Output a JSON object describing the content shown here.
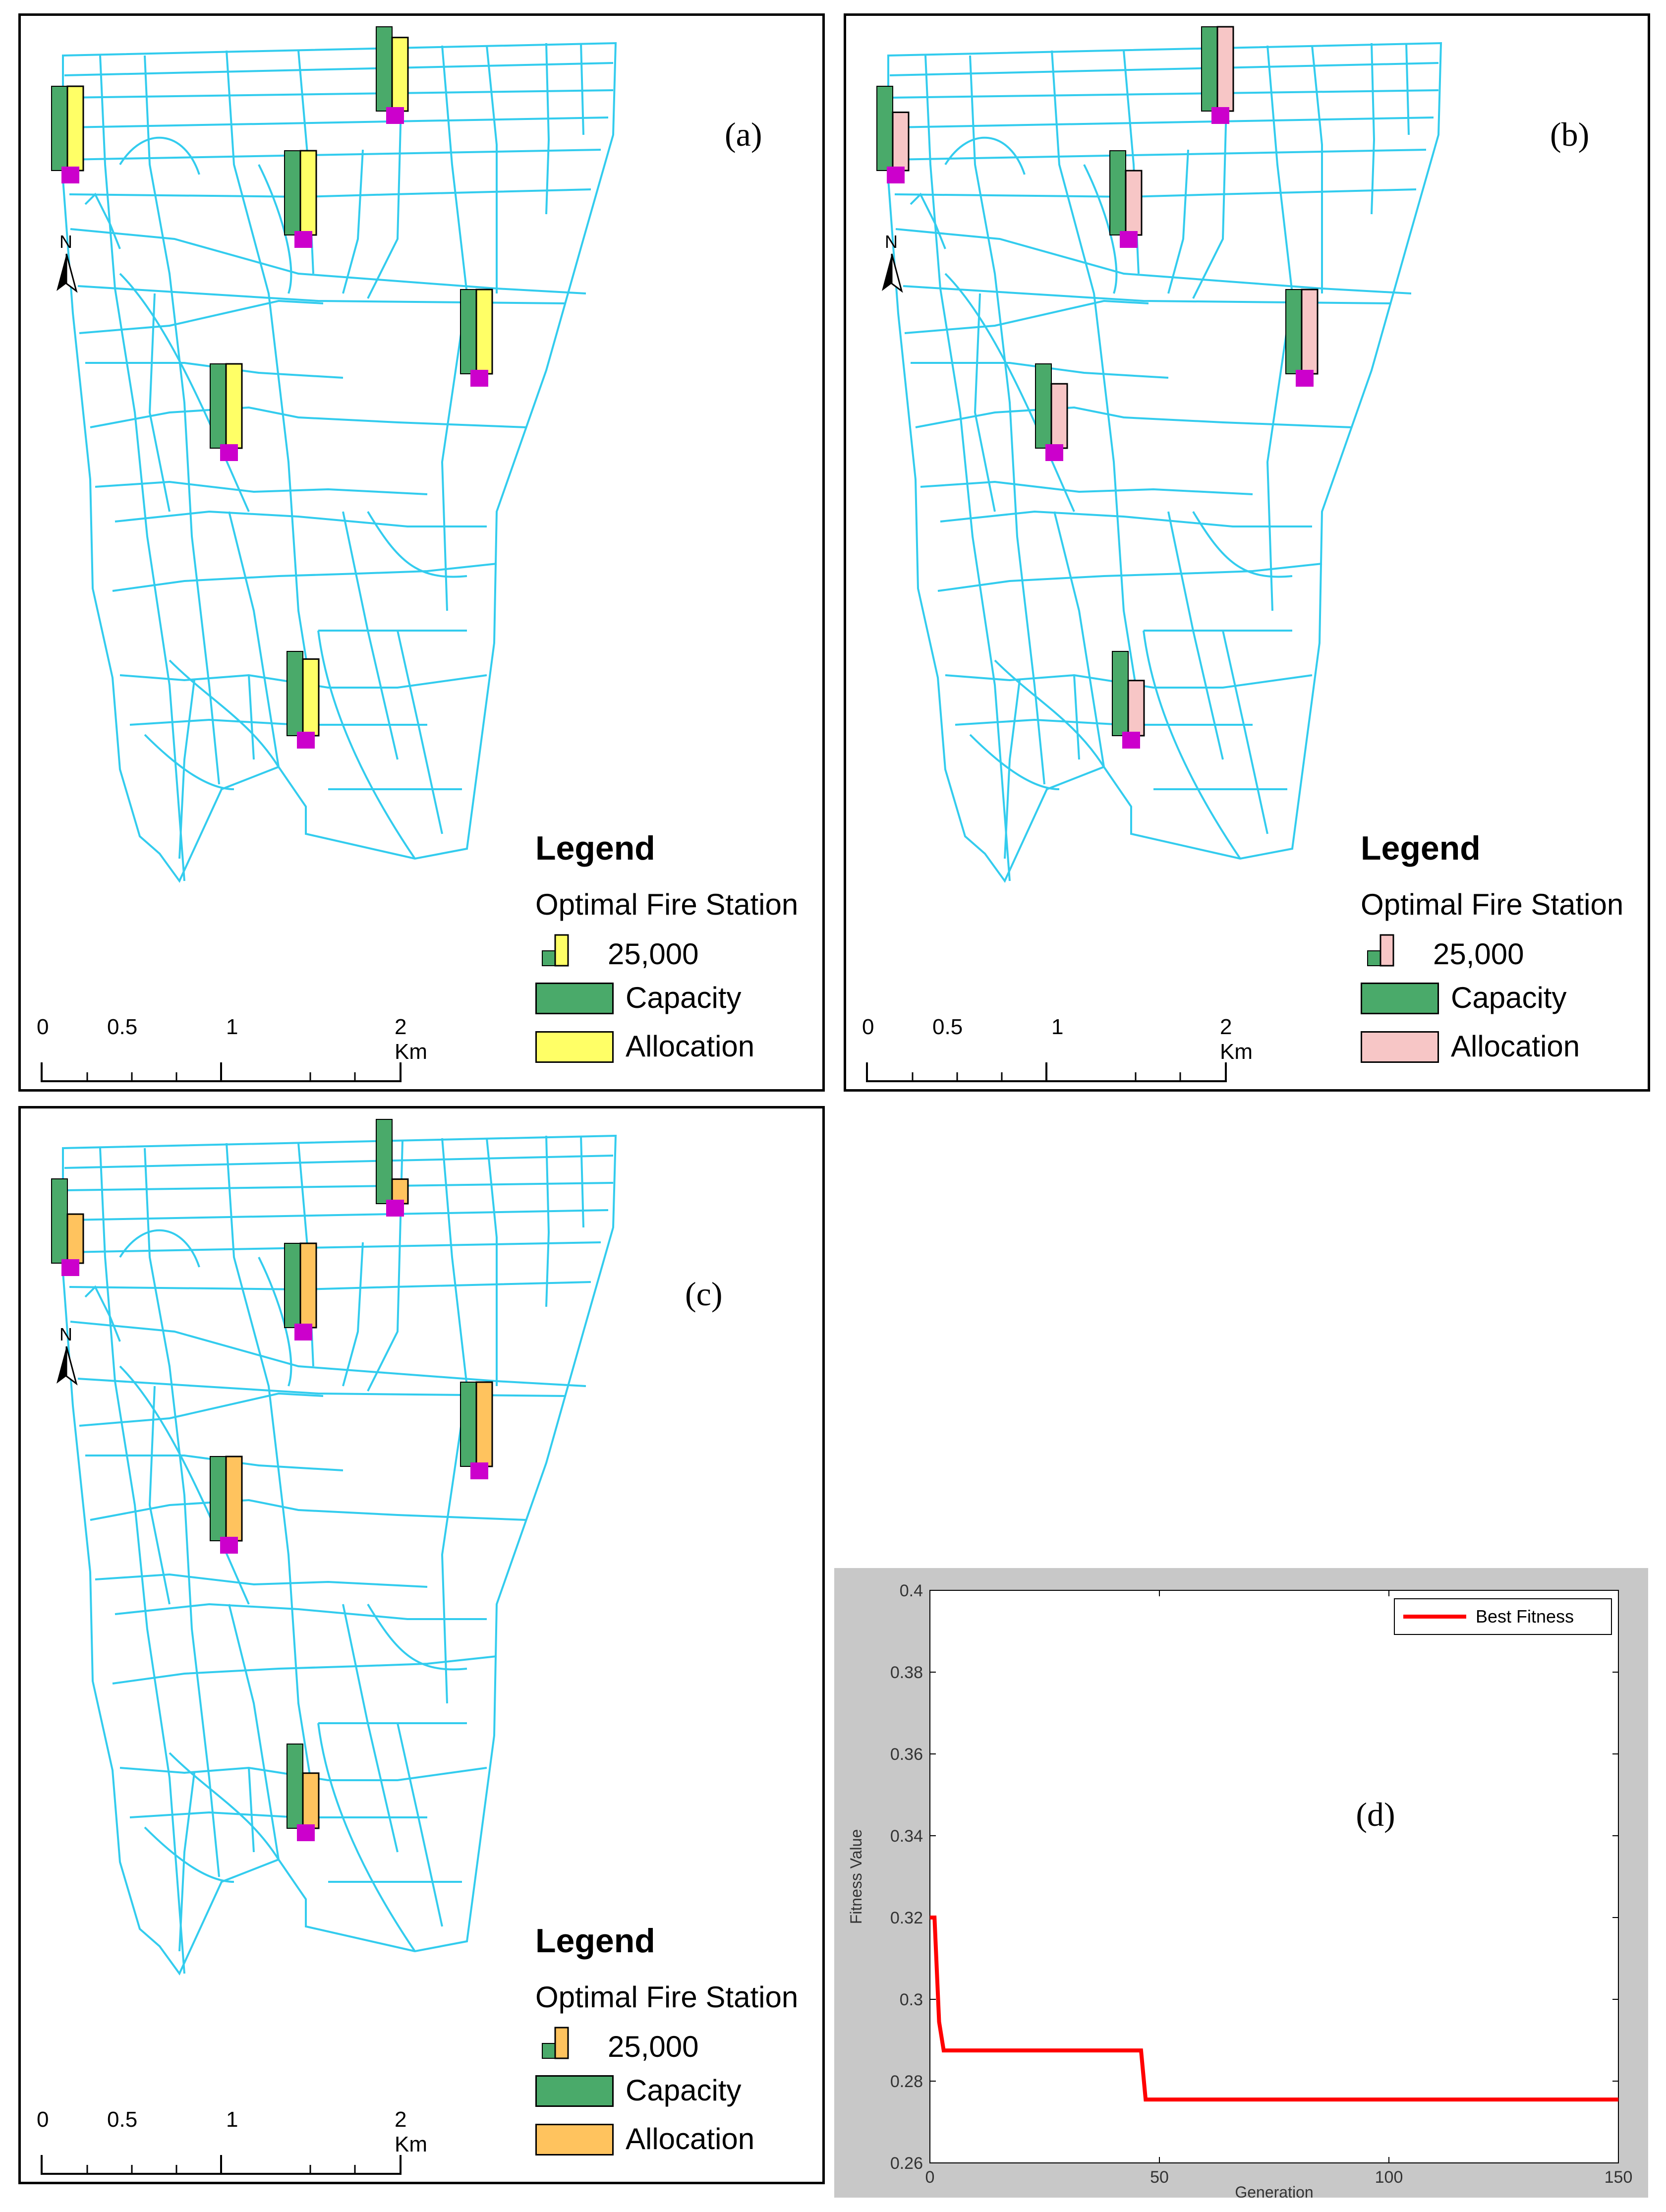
{
  "panels": [
    {
      "id": "a",
      "label": "(a)",
      "allocation_color": "#ffff66",
      "legend": {
        "title": "Legend",
        "subtitle": "Optimal Fire Station",
        "scale_value": "25,000",
        "capacity": "Capacity",
        "allocation": "Allocation"
      },
      "scale_ticks": [
        "0",
        "0.5",
        "1",
        "2 Km"
      ]
    },
    {
      "id": "b",
      "label": "(b)",
      "allocation_color": "#f7c6c6",
      "legend": {
        "title": "Legend",
        "subtitle": "Optimal Fire Station",
        "scale_value": "25,000",
        "capacity": "Capacity",
        "allocation": "Allocation"
      },
      "scale_ticks": [
        "0",
        "0.5",
        "1",
        "2 Km"
      ]
    },
    {
      "id": "c",
      "label": "(c)",
      "allocation_color": "#ffc35e",
      "legend": {
        "title": "Legend",
        "subtitle": "Optimal Fire Station",
        "scale_value": "25,000",
        "capacity": "Capacity",
        "allocation": "Allocation"
      },
      "scale_ticks": [
        "0",
        "0.5",
        "1",
        "2 Km"
      ]
    }
  ],
  "colors": {
    "road": "#33ccee",
    "capacity": "#4aaa6a",
    "station": "#cc00cc"
  },
  "north_label": "N",
  "stations": {
    "capacity_fraction": [
      0.55,
      0.55,
      0.55,
      0.55,
      0.55,
      0.55
    ],
    "allocation_fraction": {
      "a": [
        0.55,
        0.55,
        0.48,
        0.55,
        0.55,
        0.5
      ],
      "b": [
        0.38,
        0.42,
        0.55,
        0.55,
        0.42,
        0.36
      ],
      "c": [
        0.32,
        0.55,
        0.16,
        0.55,
        0.55,
        0.36
      ]
    }
  },
  "chart_data": {
    "type": "line",
    "label": "(d)",
    "title": "",
    "xlabel": "Generation",
    "ylabel": "Fitness Value",
    "xlim": [
      0,
      150
    ],
    "ylim": [
      0.26,
      0.4
    ],
    "xticks": [
      0,
      50,
      100,
      150
    ],
    "yticks": [
      0.26,
      0.28,
      0.3,
      0.32,
      0.34,
      0.36,
      0.38,
      0.4
    ],
    "ytick_labels": [
      "0.26",
      "0.28",
      "0.3",
      "0.32",
      "0.34",
      "0.36",
      "0.38",
      "0.4"
    ],
    "xtick_labels": [
      "0",
      "50",
      "100",
      "150"
    ],
    "legend_position": "top-right",
    "series": [
      {
        "name": "Best Fitness",
        "color": "#ff0000",
        "x": [
          0,
          1,
          2,
          3,
          46,
          47,
          150
        ],
        "y": [
          0.32,
          0.32,
          0.2945,
          0.2875,
          0.2875,
          0.2755,
          0.2755
        ]
      }
    ]
  }
}
